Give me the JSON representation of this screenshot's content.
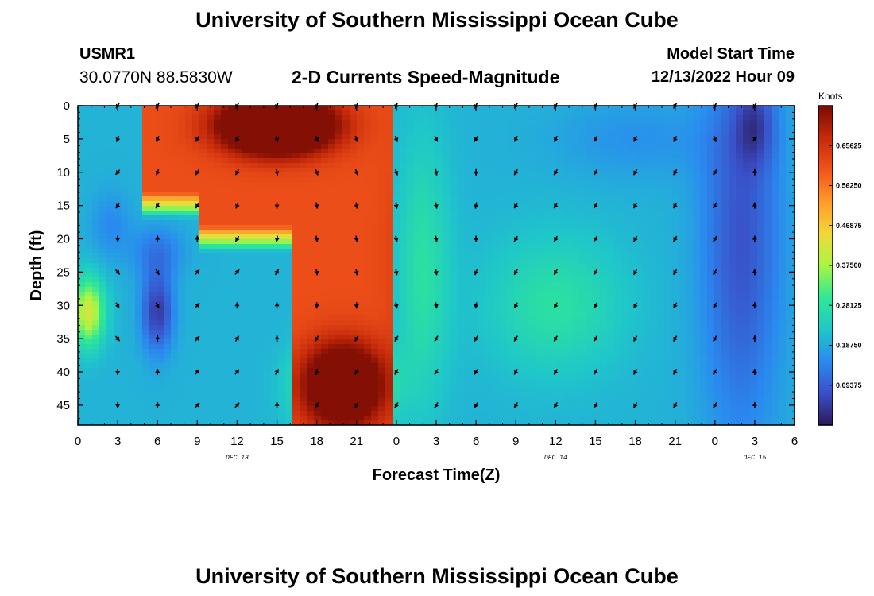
{
  "header": {
    "title": "University of Southern Mississippi Ocean Cube",
    "station": "USMR1",
    "coords": "30.0770N  88.5830W",
    "subtitle": "2-D Currents Speed-Magnitude",
    "start_label": "Model Start Time",
    "start_value": "12/13/2022 Hour 09"
  },
  "footer": {
    "title": "University of Southern Mississippi Ocean Cube"
  },
  "chart_data": {
    "type": "heatmap",
    "xlabel": "Forecast Time(Z)",
    "ylabel": "Depth (ft)",
    "x_ticks": [
      "0",
      "3",
      "6",
      "9",
      "12",
      "15",
      "18",
      "21",
      "0",
      "3",
      "6",
      "9",
      "12",
      "15",
      "18",
      "21",
      "0",
      "3",
      "6"
    ],
    "x_hours": [
      0,
      3,
      6,
      9,
      12,
      15,
      18,
      21,
      24,
      27,
      30,
      33,
      36,
      39,
      42,
      45,
      48,
      51,
      54
    ],
    "xlim": [
      0,
      54
    ],
    "day_labels": [
      {
        "label": "DEC 13",
        "hour": 12
      },
      {
        "label": "DEC 14",
        "hour": 36
      },
      {
        "label": "DEC 15",
        "hour": 51
      }
    ],
    "y_ticks": [
      0,
      5,
      10,
      15,
      20,
      25,
      30,
      35,
      40,
      45
    ],
    "ylim": [
      0,
      48
    ],
    "y_inverted": true,
    "colorbar": {
      "label": "Knots",
      "ticks": [
        "0.65625",
        "0.56250",
        "0.46875",
        "0.37500",
        "0.28125",
        "0.18750",
        "0.09375"
      ],
      "tick_values": [
        0.65625,
        0.5625,
        0.46875,
        0.375,
        0.28125,
        0.1875,
        0.09375
      ],
      "range": [
        0,
        0.75
      ],
      "colors": [
        "#2b1a5a",
        "#3a4fc8",
        "#2a8af0",
        "#1fc7c9",
        "#2fe895",
        "#a8f544",
        "#f2d83a",
        "#ff9a2a",
        "#f2531b",
        "#c52a0a",
        "#7a0b03"
      ]
    },
    "arrow_hours": [
      3,
      6,
      9,
      12,
      15,
      18,
      21,
      24,
      27,
      30,
      33,
      36,
      39,
      42,
      45,
      48,
      51
    ],
    "arrow_depths": [
      0,
      5,
      10,
      15,
      20,
      25,
      30,
      35,
      40,
      45
    ],
    "arrow_dir_deg": [
      [
        210,
        210,
        210,
        210,
        200,
        200,
        200,
        200,
        200,
        200,
        210,
        210,
        210,
        210,
        210,
        210,
        210
      ],
      [
        200,
        210,
        210,
        210,
        170,
        160,
        160,
        160,
        150,
        210,
        210,
        210,
        210,
        210,
        210,
        160,
        40
      ],
      [
        220,
        200,
        210,
        210,
        170,
        160,
        160,
        160,
        170,
        180,
        210,
        210,
        210,
        210,
        210,
        210,
        0
      ],
      [
        210,
        210,
        210,
        200,
        180,
        170,
        170,
        170,
        170,
        190,
        210,
        210,
        210,
        210,
        210,
        210,
        0
      ],
      [
        180,
        0,
        0,
        210,
        190,
        170,
        170,
        170,
        170,
        180,
        210,
        210,
        210,
        210,
        210,
        210,
        0
      ],
      [
        140,
        150,
        40,
        40,
        30,
        170,
        170,
        170,
        170,
        200,
        210,
        210,
        210,
        210,
        210,
        210,
        0
      ],
      [
        150,
        150,
        40,
        0,
        0,
        180,
        180,
        170,
        170,
        190,
        210,
        210,
        210,
        210,
        210,
        210,
        0
      ],
      [
        140,
        0,
        40,
        30,
        0,
        210,
        210,
        210,
        210,
        210,
        210,
        210,
        210,
        210,
        210,
        210,
        0
      ],
      [
        180,
        0,
        40,
        40,
        30,
        190,
        210,
        210,
        210,
        210,
        210,
        210,
        210,
        210,
        210,
        210,
        0
      ],
      [
        180,
        0,
        40,
        40,
        0,
        210,
        210,
        210,
        210,
        210,
        210,
        210,
        210,
        210,
        210,
        210,
        0
      ]
    ]
  }
}
